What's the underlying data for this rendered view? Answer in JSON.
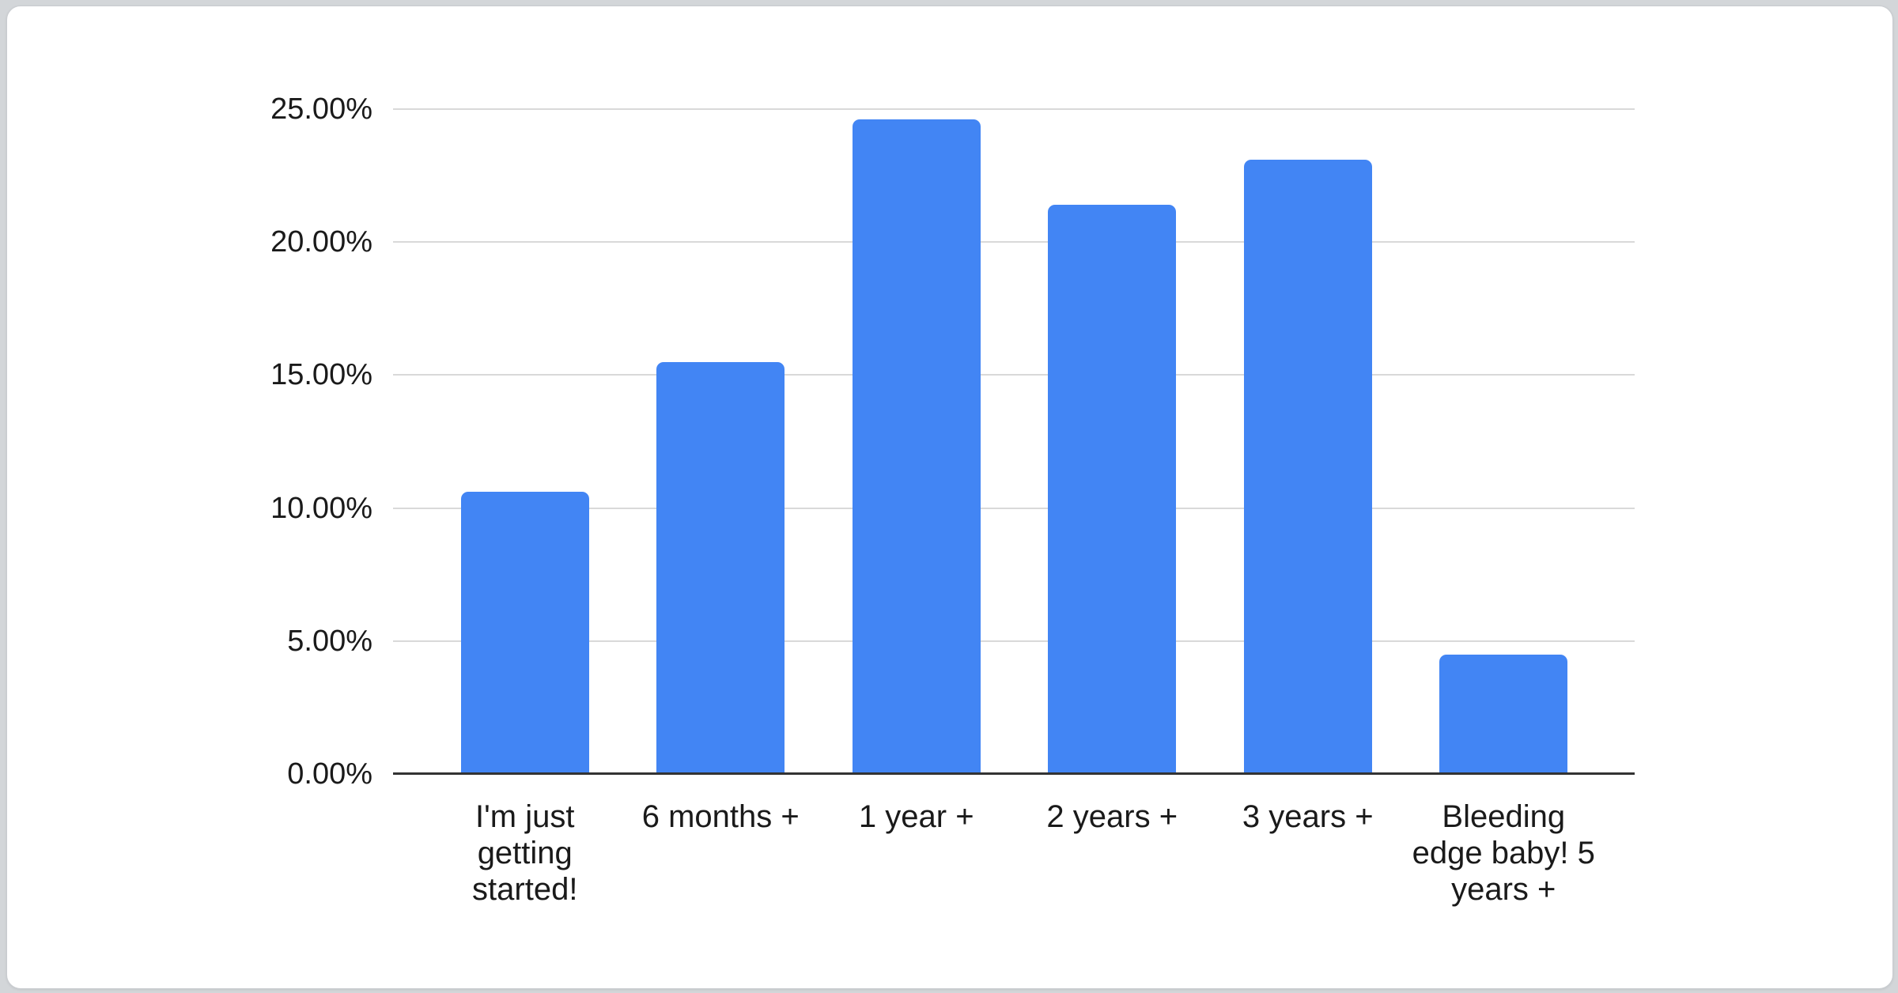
{
  "chart_data": {
    "type": "bar",
    "title": "",
    "xlabel": "",
    "ylabel": "",
    "categories": [
      "I'm just getting started!",
      "6 months +",
      "1 year +",
      "2 years +",
      "3 years +",
      "Bleeding edge baby! 5 years +"
    ],
    "values": [
      10.6,
      15.5,
      24.6,
      21.4,
      23.1,
      4.5
    ],
    "value_unit": "%",
    "ylim": [
      0,
      25
    ],
    "y_tick_step": 5,
    "y_tick_labels": [
      "0.00%",
      "5.00%",
      "10.00%",
      "15.00%",
      "20.00%",
      "25.00%"
    ],
    "grid": true,
    "legend": "none",
    "colors": {
      "bar": "#4285f4",
      "gridline": "#d9d9d9",
      "axis_line": "#333333",
      "tick_text": "#1a1a1a",
      "category_text": "#1a1a1a",
      "card_background": "#ffffff",
      "page_background": "#d3d6d9"
    }
  }
}
